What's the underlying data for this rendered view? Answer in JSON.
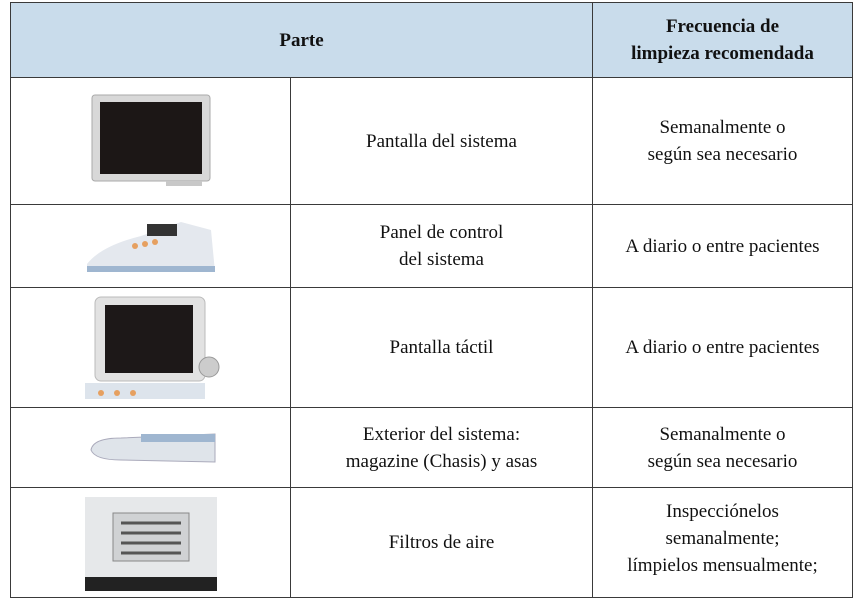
{
  "table": {
    "header": [
      "Parte",
      [
        "Frecuencia de",
        "limpieza recomendada"
      ]
    ],
    "rows": [
      {
        "part": [
          "Pantalla del sistema"
        ],
        "frequency": [
          "Semanalmente o",
          "según sea necesario"
        ]
      },
      {
        "part": [
          "Panel de control",
          "del sistema"
        ],
        "frequency": [
          "A diario o entre pacientes"
        ]
      },
      {
        "part": [
          "Pantalla táctil"
        ],
        "frequency": [
          "A diario o entre pacientes"
        ]
      },
      {
        "part": [
          "Exterior del sistema:",
          "magazine (Chasis) y asas"
        ],
        "frequency": [
          "Semanalmente o",
          "según sea necesario"
        ]
      },
      {
        "part": [
          "Filtros de aire"
        ],
        "frequency": [
          "Inspecciónelos",
          "semanalmente;",
          "límpielos mensualmente;"
        ]
      }
    ]
  }
}
